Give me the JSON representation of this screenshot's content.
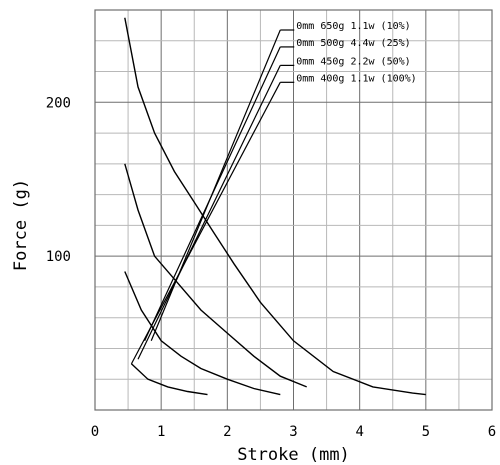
{
  "chart_data": {
    "type": "line",
    "title": "",
    "xlabel": "Stroke (mm)",
    "ylabel": "Force (g)",
    "xlim": [
      0,
      6
    ],
    "ylim": [
      0,
      260
    ],
    "x_ticks": [
      "0",
      "1",
      "2",
      "3",
      "4",
      "5",
      "6"
    ],
    "y_ticks": [
      {
        "value": 100,
        "label": "100"
      },
      {
        "value": 200,
        "label": "200"
      }
    ],
    "grid": true,
    "legend": {
      "placement": "top-right",
      "entries": [
        "0mm 650g 1.1w (10%)",
        "0mm 500g 4.4w (25%)",
        "0mm 450g 2.2w (50%)",
        "0mm 400g 1.1w (100%)"
      ]
    },
    "series": [
      {
        "duty": "10%",
        "x": [
          0.45,
          0.65,
          0.9,
          1.2,
          1.5,
          1.8,
          2.1,
          2.5,
          3.0,
          3.6,
          4.2,
          4.8,
          5.0
        ],
        "y": [
          255,
          210,
          180,
          155,
          135,
          115,
          95,
          70,
          45,
          25,
          15,
          11,
          10
        ]
      },
      {
        "duty": "25%",
        "x": [
          0.45,
          0.65,
          0.9,
          1.2,
          1.6,
          2.0,
          2.4,
          2.8,
          3.2
        ],
        "y": [
          160,
          130,
          100,
          85,
          65,
          50,
          35,
          22,
          15
        ]
      },
      {
        "duty": "50%",
        "x": [
          0.45,
          0.7,
          1.0,
          1.3,
          1.6,
          2.0,
          2.4,
          2.8
        ],
        "y": [
          90,
          65,
          45,
          35,
          27,
          20,
          14,
          10
        ]
      },
      {
        "duty": "100%",
        "x": [
          0.55,
          0.8,
          1.1,
          1.4,
          1.7
        ],
        "y": [
          30,
          20,
          15,
          12,
          10
        ]
      }
    ],
    "legend_leaders": [
      {
        "from": [
          2.8,
          247
        ],
        "to": [
          0.85,
          45
        ]
      },
      {
        "from": [
          2.8,
          236
        ],
        "to": [
          0.75,
          45
        ]
      },
      {
        "from": [
          2.8,
          224
        ],
        "to": [
          0.65,
          33
        ]
      },
      {
        "from": [
          2.8,
          213
        ],
        "to": [
          0.55,
          30
        ]
      }
    ]
  }
}
